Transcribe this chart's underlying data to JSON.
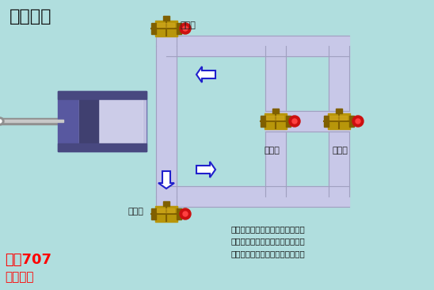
{
  "bg_color": "#b0dede",
  "title": "旁路调节",
  "pipe_color": "#c8c8e8",
  "pipe_border": "#a0a0c0",
  "valve_dark": "#806000",
  "valve_mid": "#b8960a",
  "valve_light": "#d4aa20",
  "valve_handle": "#cc1010",
  "piston_outer": "#5858a0",
  "piston_face": "#c0c0e0",
  "piston_dark_stripe": "#404070",
  "piston_highlight": "#d8d8f0",
  "rod_color": "#909090",
  "rod_highlight": "#c8c8c8",
  "arrow_color": "#2020cc",
  "label_inlet": "进口阀",
  "label_outlet": "出口阀",
  "label_bypass": "旁路阀",
  "label_safety": "安全阀",
  "watermark_line1": "化工707",
  "watermark_line2": "剪辑制作",
  "desc_text": "往复泵是正位移泵。当泵提供的流\n量大于管路需求流量时，要求一部\n份回流到往复泵进口，即旁路调节"
}
